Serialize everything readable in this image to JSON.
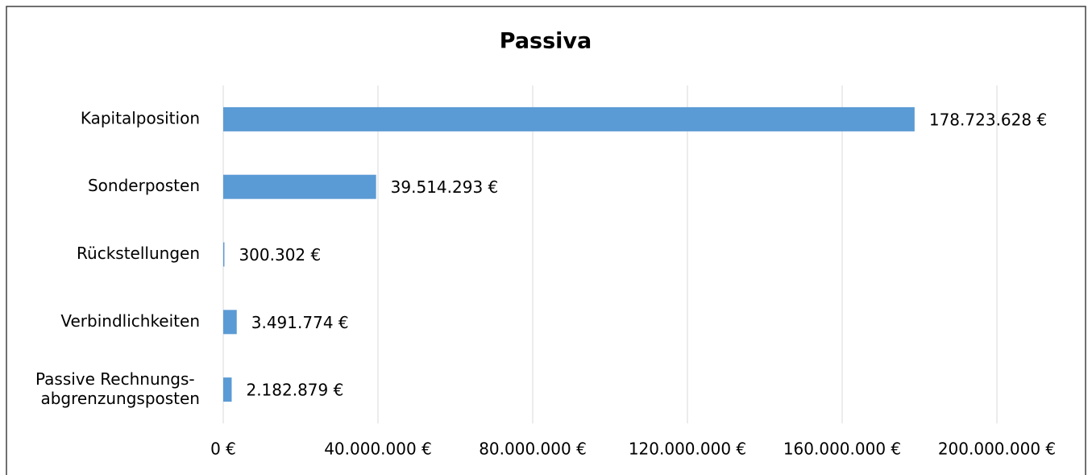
{
  "chart_data": {
    "type": "barh",
    "title": "Passiva",
    "categories": [
      "Kapitalposition",
      "Sonderposten",
      "Rückstellungen",
      "Verbindlichkeiten",
      "Passive Rechnungs-\nabgrenzungsposten"
    ],
    "values": [
      178723628,
      39514293,
      300302,
      3491774,
      2182879
    ],
    "value_labels": [
      "178.723.628 €",
      "39.514.293 €",
      "300.302 €",
      "3.491.774 €",
      "2.182.879 €"
    ],
    "color": "#5b9bd5",
    "xlim": [
      0,
      200000000
    ],
    "xticks": [
      {
        "value": 0,
        "label": "0 €"
      },
      {
        "value": 40000000,
        "label": "40.000.000 €"
      },
      {
        "value": 80000000,
        "label": "80.000.000 €"
      },
      {
        "value": 120000000,
        "label": "120.000.000 €"
      },
      {
        "value": 160000000,
        "label": "160.000.000 €"
      },
      {
        "value": 200000000,
        "label": "200.000.000 €"
      }
    ],
    "grid": true
  }
}
